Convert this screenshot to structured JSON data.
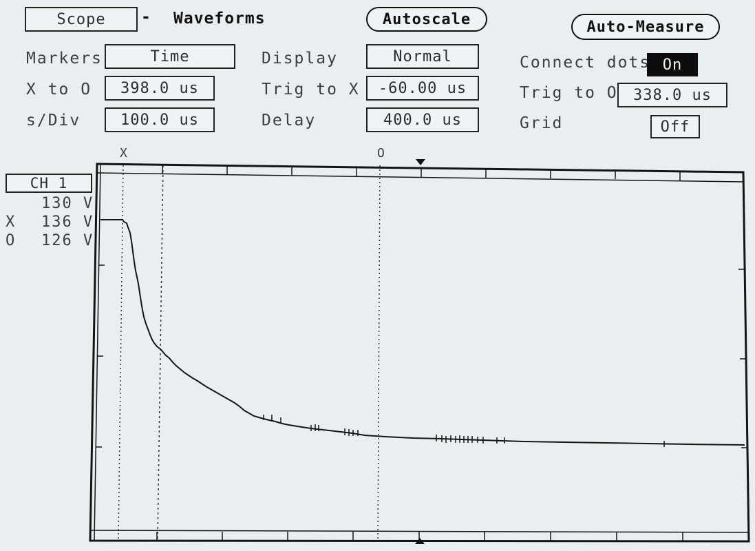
{
  "header": {
    "menu_value": "Scope",
    "dash": "-",
    "title": "Waveforms",
    "autoscale_label": "Autoscale",
    "automeasure_label": "Auto-Measure"
  },
  "settings": {
    "markers": {
      "label": "Markers",
      "value": "Time"
    },
    "x_to_o": {
      "label": "X to O",
      "value": "398.0 us"
    },
    "s_div": {
      "label": "s/Div",
      "value": "100.0 us"
    },
    "display": {
      "label": "Display",
      "value": "Normal"
    },
    "trig_to_x": {
      "label": "Trig to X",
      "value": "-60.00 us"
    },
    "delay": {
      "label": "Delay",
      "value": "400.0 us"
    },
    "connect_dots": {
      "label": "Connect dots",
      "value": "On"
    },
    "trig_to_o": {
      "label": "Trig to O",
      "value": "338.0 us"
    },
    "grid": {
      "label": "Grid",
      "value": "Off"
    }
  },
  "channel": {
    "name": "CH 1",
    "top_value": "130 V",
    "x_label": "X",
    "x_value": "136 V",
    "o_label": "O",
    "o_value": "126 V"
  },
  "markers_top": {
    "x": "X",
    "o": "O"
  },
  "colors": {
    "trace": "#151515",
    "screen": "#e9eff1"
  }
}
